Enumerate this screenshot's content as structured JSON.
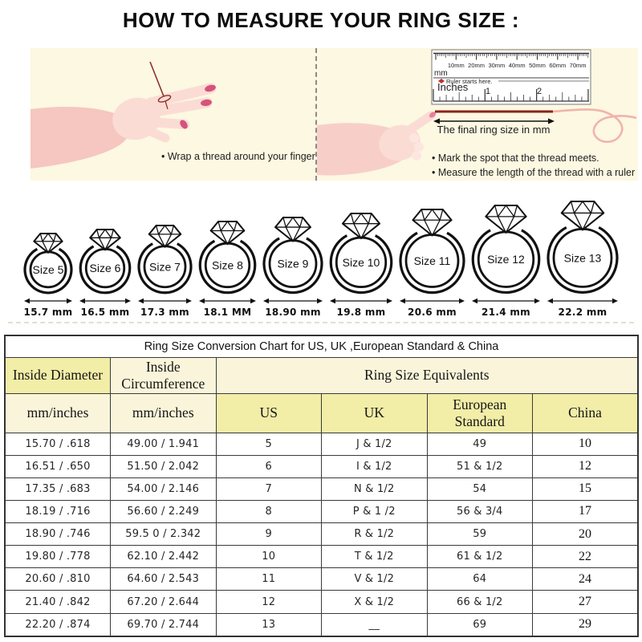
{
  "title": "HOW TO MEASURE YOUR RING SIZE :",
  "panels": {
    "left": {
      "bullet": "• Wrap a thread around your finger"
    },
    "right": {
      "ruler": {
        "mm_labels": [
          "10mm",
          "20mm",
          "30mm",
          "40mm",
          "50mm",
          "60mm",
          "70mm"
        ],
        "unit_label": "mm",
        "starts_here": "Ruler starts here.",
        "inches_label": "Inches",
        "inch_numbers": [
          "1",
          "2"
        ]
      },
      "thread_arrow_label": "The final ring size in mm",
      "bullets": [
        "• Mark the spot that the thread meets.",
        "• Measure the length of the thread with a ruler"
      ]
    }
  },
  "rings": [
    {
      "label": "Size 5",
      "mm": "15.7 mm"
    },
    {
      "label": "Size 6",
      "mm": "16.5 mm"
    },
    {
      "label": "Size 7",
      "mm": "17.3 mm"
    },
    {
      "label": "Size 8",
      "mm": "18.1 MM"
    },
    {
      "label": "Size 9",
      "mm": "18.90 mm"
    },
    {
      "label": "Size 10",
      "mm": "19.8 mm"
    },
    {
      "label": "Size 11",
      "mm": "20.6 mm"
    },
    {
      "label": "Size 12",
      "mm": "21.4 mm"
    },
    {
      "label": "Size 13",
      "mm": "22.2 mm"
    }
  ],
  "table": {
    "title": "Ring Size Conversion Chart for US, UK ,European Standard & China",
    "col_group_headers": {
      "inside_diameter": "Inside Diameter",
      "inside_circumference": "Inside Circumference",
      "equivalents": "Ring Size Equivalents"
    },
    "sub_headers": [
      "mm/inches",
      "mm/inches",
      "US",
      "UK",
      "European Standard",
      "China"
    ],
    "rows": [
      [
        "15.70 / .618",
        "49.00 / 1.941",
        "5",
        "J & 1/2",
        "49",
        "10"
      ],
      [
        "16.51 / .650",
        "51.50 / 2.042",
        "6",
        "I & 1/2",
        "51 & 1/2",
        "12"
      ],
      [
        "17.35 / .683",
        "54.00 / 2.146",
        "7",
        "N & 1/2",
        "54",
        "15"
      ],
      [
        "18.19 / .716",
        "56.60 / 2.249",
        "8",
        "P & 1 /2",
        "56 & 3/4",
        "17"
      ],
      [
        "18.90 / .746",
        "59.5 0 / 2.342",
        "9",
        "R & 1/2",
        "59",
        "20"
      ],
      [
        "19.80 / .778",
        "62.10 / 2.442",
        "10",
        "T & 1/2",
        "61 & 1/2",
        "22"
      ],
      [
        "20.60 / .810",
        "64.60 / 2.543",
        "11",
        "V & 1/2",
        "64",
        "24"
      ],
      [
        "21.40 / .842",
        "67.20 / 2.644",
        "12",
        "X & 1/2",
        "66 & 1/2",
        "27"
      ],
      [
        "22.20 / .874",
        "69.70 / 2.744",
        "13",
        "__",
        "69",
        "29"
      ]
    ]
  },
  "colors": {
    "panel_cream": "#FCF8E2",
    "cell_yellow": "#F2EDA7",
    "cell_cream": "#FAF5DA",
    "thread_dark_red": "#8E2F28",
    "thread_pink": "#F2B3AA",
    "nail_pink": "#D6537B",
    "marker_red": "#C43030"
  }
}
